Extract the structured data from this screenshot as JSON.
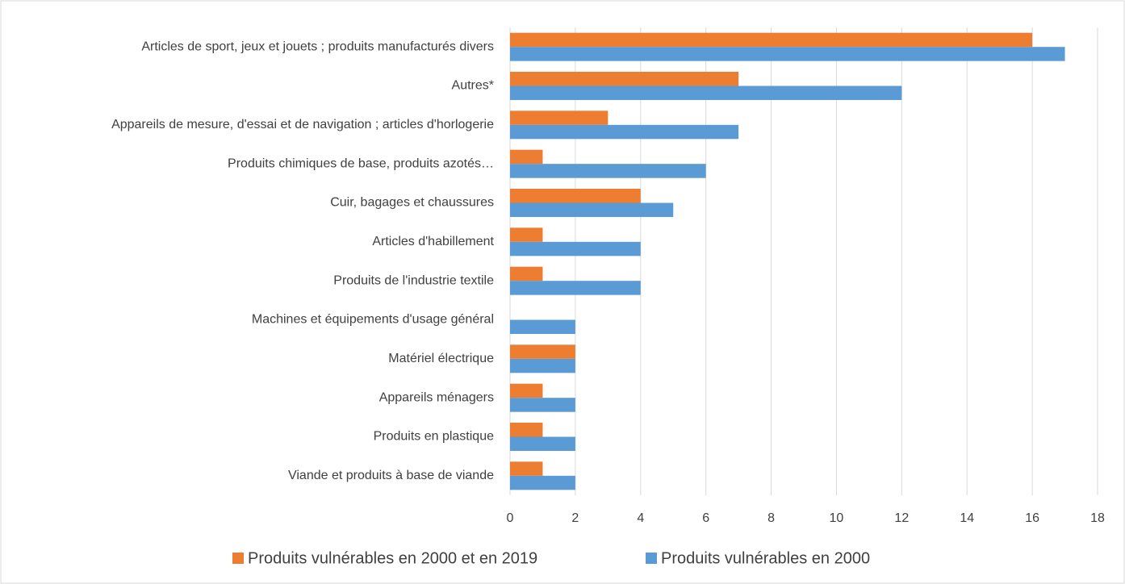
{
  "chart_data": {
    "type": "barh",
    "categories": [
      "Articles de sport, jeux et jouets ; produits manufacturés divers",
      "Autres*",
      "Appareils de mesure, d'essai et de navigation ; articles d'horlogerie",
      "Produits chimiques de base, produits azotés…",
      "Cuir, bagages et chaussures",
      "Articles d'habillement",
      "Produits de l'industrie textile",
      "Machines et équipements d'usage général",
      "Matériel électrique",
      "Appareils ménagers",
      "Produits en plastique",
      "Viande et produits à base de viande"
    ],
    "series": [
      {
        "name": "Produits vulnérables en 2000 et en 2019",
        "color": "#ed7d31",
        "values": [
          16,
          7,
          3,
          1,
          4,
          1,
          1,
          0,
          2,
          1,
          1,
          1
        ]
      },
      {
        "name": "Produits vulnérables en 2000",
        "color": "#5b9bd5",
        "values": [
          17,
          12,
          7,
          6,
          5,
          4,
          4,
          2,
          2,
          2,
          2,
          2
        ]
      }
    ],
    "xlim": [
      0,
      18
    ],
    "xticks": [
      0,
      2,
      4,
      6,
      8,
      10,
      12,
      14,
      16,
      18
    ],
    "grid": true,
    "legend": "bottom"
  }
}
